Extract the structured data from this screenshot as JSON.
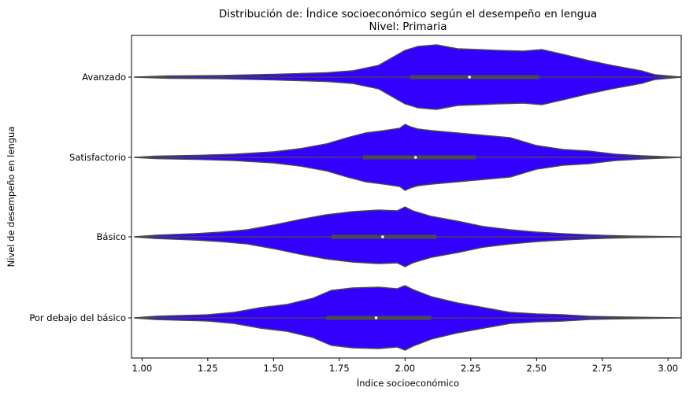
{
  "chart_data": {
    "type": "violin",
    "title": "Distribución de: Índice socioeconómico según el desempeño en lengua",
    "subtitle": "Nivel: Primaria",
    "xlabel": "Índice socioeconómico",
    "ylabel": "Nivel de desempeño en lengua",
    "xlim": [
      0.96,
      3.05
    ],
    "x_ticks": [
      1.0,
      1.25,
      1.5,
      1.75,
      2.0,
      2.25,
      2.5,
      2.75,
      3.0
    ],
    "x_tick_labels": [
      "1.00",
      "1.25",
      "1.50",
      "1.75",
      "2.00",
      "2.25",
      "2.50",
      "2.75",
      "3.00"
    ],
    "categories": [
      "Avanzado",
      "Satisfactorio",
      "Básico",
      "Por debajo del básico"
    ],
    "grid": false,
    "colors": {
      "fill": "#3300ff",
      "edge": "#4a4a4a",
      "box": "#4a4a4a",
      "median": "#ffffff"
    },
    "series": [
      {
        "category": "Avanzado",
        "q1": 2.02,
        "median": 2.245,
        "q3": 2.51,
        "profile": [
          [
            0.97,
            0
          ],
          [
            1.1,
            0.03
          ],
          [
            1.3,
            0.04
          ],
          [
            1.5,
            0.07
          ],
          [
            1.7,
            0.11
          ],
          [
            1.8,
            0.16
          ],
          [
            1.9,
            0.3
          ],
          [
            2.0,
            0.68
          ],
          [
            2.05,
            0.78
          ],
          [
            2.12,
            0.82
          ],
          [
            2.2,
            0.72
          ],
          [
            2.28,
            0.7
          ],
          [
            2.35,
            0.68
          ],
          [
            2.45,
            0.66
          ],
          [
            2.52,
            0.7
          ],
          [
            2.6,
            0.58
          ],
          [
            2.7,
            0.42
          ],
          [
            2.8,
            0.28
          ],
          [
            2.9,
            0.16
          ],
          [
            2.95,
            0.06
          ],
          [
            3.05,
            0
          ]
        ]
      },
      {
        "category": "Satisfactorio",
        "q1": 1.84,
        "median": 2.04,
        "q3": 2.27,
        "profile": [
          [
            0.97,
            0
          ],
          [
            1.05,
            0.03
          ],
          [
            1.2,
            0.05
          ],
          [
            1.35,
            0.08
          ],
          [
            1.5,
            0.14
          ],
          [
            1.6,
            0.22
          ],
          [
            1.7,
            0.34
          ],
          [
            1.78,
            0.5
          ],
          [
            1.85,
            0.62
          ],
          [
            1.92,
            0.68
          ],
          [
            1.98,
            0.74
          ],
          [
            2.0,
            0.84
          ],
          [
            2.02,
            0.78
          ],
          [
            2.05,
            0.72
          ],
          [
            2.1,
            0.68
          ],
          [
            2.2,
            0.62
          ],
          [
            2.3,
            0.56
          ],
          [
            2.4,
            0.5
          ],
          [
            2.5,
            0.3
          ],
          [
            2.6,
            0.2
          ],
          [
            2.7,
            0.16
          ],
          [
            2.8,
            0.08
          ],
          [
            2.9,
            0.04
          ],
          [
            3.05,
            0
          ]
        ]
      },
      {
        "category": "Básico",
        "q1": 1.72,
        "median": 1.915,
        "q3": 2.12,
        "profile": [
          [
            0.97,
            0
          ],
          [
            1.05,
            0.04
          ],
          [
            1.2,
            0.08
          ],
          [
            1.3,
            0.12
          ],
          [
            1.4,
            0.18
          ],
          [
            1.5,
            0.3
          ],
          [
            1.6,
            0.44
          ],
          [
            1.7,
            0.56
          ],
          [
            1.8,
            0.64
          ],
          [
            1.9,
            0.68
          ],
          [
            1.97,
            0.66
          ],
          [
            2.0,
            0.76
          ],
          [
            2.03,
            0.66
          ],
          [
            2.1,
            0.52
          ],
          [
            2.2,
            0.4
          ],
          [
            2.3,
            0.26
          ],
          [
            2.4,
            0.18
          ],
          [
            2.5,
            0.12
          ],
          [
            2.6,
            0.08
          ],
          [
            2.7,
            0.05
          ],
          [
            2.85,
            0.02
          ],
          [
            3.05,
            0
          ]
        ]
      },
      {
        "category": "Por debajo del básico",
        "q1": 1.7,
        "median": 1.89,
        "q3": 2.1,
        "profile": [
          [
            0.97,
            0
          ],
          [
            1.05,
            0.04
          ],
          [
            1.15,
            0.06
          ],
          [
            1.25,
            0.08
          ],
          [
            1.35,
            0.14
          ],
          [
            1.45,
            0.26
          ],
          [
            1.55,
            0.34
          ],
          [
            1.65,
            0.5
          ],
          [
            1.72,
            0.7
          ],
          [
            1.8,
            0.76
          ],
          [
            1.9,
            0.78
          ],
          [
            1.97,
            0.74
          ],
          [
            2.0,
            0.82
          ],
          [
            2.03,
            0.72
          ],
          [
            2.1,
            0.54
          ],
          [
            2.2,
            0.38
          ],
          [
            2.3,
            0.26
          ],
          [
            2.4,
            0.14
          ],
          [
            2.5,
            0.1
          ],
          [
            2.6,
            0.08
          ],
          [
            2.7,
            0.04
          ],
          [
            2.85,
            0.02
          ],
          [
            3.05,
            0
          ]
        ]
      }
    ]
  }
}
